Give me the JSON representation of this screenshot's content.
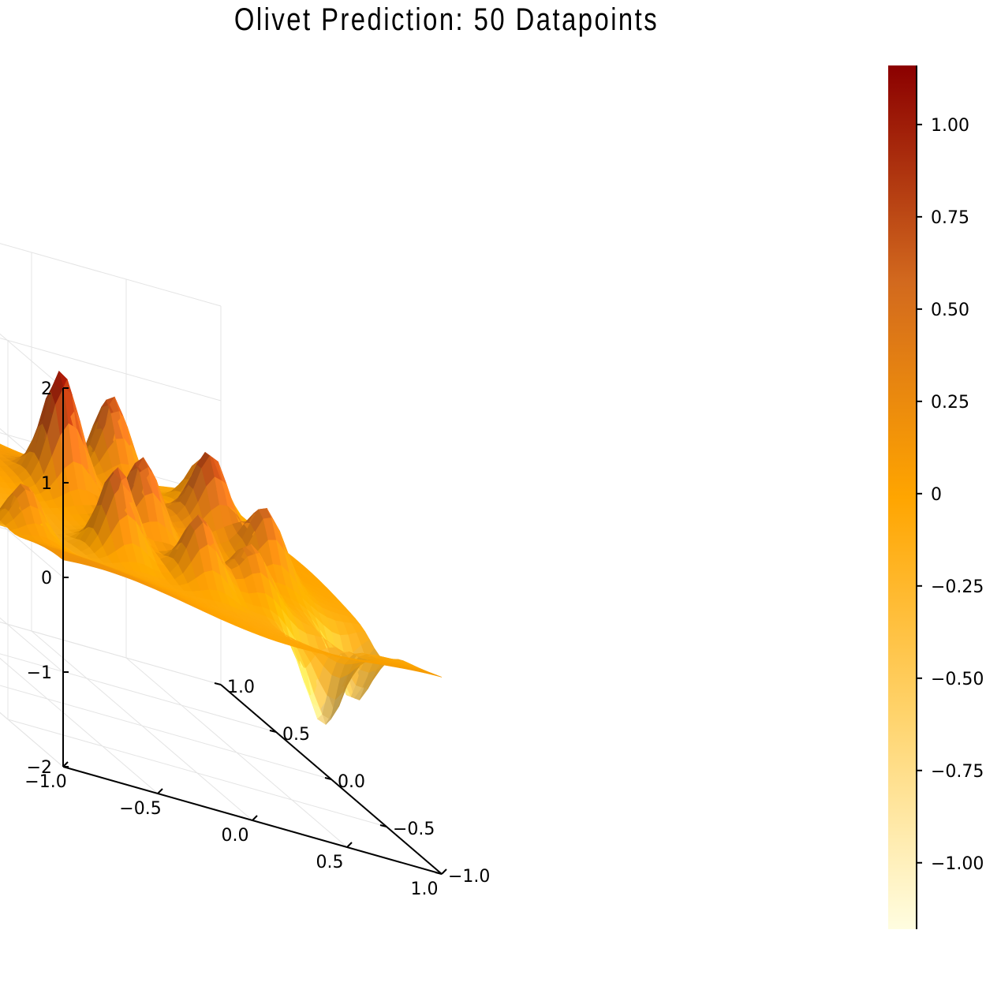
{
  "chart_data": {
    "type": "surface",
    "title": "Olivet Prediction: 50 Datapoints",
    "xlabel": "",
    "ylabel": "",
    "zlabel": "",
    "x_range": [
      -1.0,
      1.0
    ],
    "y_range": [
      -1.0,
      1.0
    ],
    "z_range": [
      -2,
      2
    ],
    "x_ticks": [
      "−1.0",
      "−0.5",
      "0.0",
      "0.5",
      "1.0"
    ],
    "y_ticks": [
      "−1.0",
      "−0.5",
      "0.0",
      "0.5",
      "1.0"
    ],
    "z_ticks": [
      "−2",
      "−1",
      "0",
      "1",
      "2"
    ],
    "colorbar": {
      "range": [
        -1.18,
        1.16
      ],
      "colormap": "YlOrBr-like (light yellow → orange → dark red)",
      "colors": [
        "#fffde0",
        "#ffd36b",
        "#ffa500",
        "#d2691e",
        "#8b0000"
      ],
      "ticks": [
        "1.00",
        "0.75",
        "0.50",
        "0.25",
        "0",
        "−0.25",
        "−0.50",
        "−0.75",
        "−1.00"
      ]
    },
    "peaks": [
      {
        "x": -0.65,
        "y": 0.75,
        "z": 1.05
      },
      {
        "x": -0.25,
        "y": 0.3,
        "z": 1.2
      },
      {
        "x": -0.3,
        "y": -0.3,
        "z": 0.95
      },
      {
        "x": -0.05,
        "y": -0.1,
        "z": 0.85
      },
      {
        "x": 0.05,
        "y": -0.45,
        "z": 0.75
      },
      {
        "x": 0.35,
        "y": -0.4,
        "z": 0.55
      },
      {
        "x": 0.25,
        "y": 0.7,
        "z": 0.95
      },
      {
        "x": 0.45,
        "y": 0.15,
        "z": 0.85
      },
      {
        "x": 0.6,
        "y": -0.1,
        "z": 0.7
      },
      {
        "x": 0.75,
        "y": 0.7,
        "z": 0.6
      },
      {
        "x": -0.85,
        "y": -0.4,
        "z": 0.6
      },
      {
        "x": 0.55,
        "y": -0.7,
        "z": -0.9
      },
      {
        "x": 0.85,
        "y": -0.45,
        "z": -0.7
      }
    ],
    "grid": true,
    "legend": "none"
  }
}
